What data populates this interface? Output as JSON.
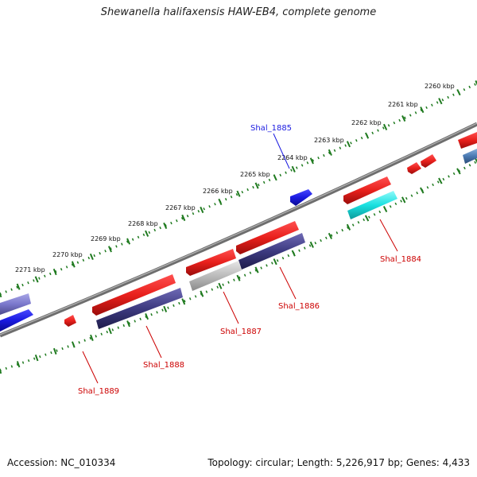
{
  "title": "Shewanella halifaxensis HAW-EB4, complete genome",
  "footer": {
    "accession": "Accession: NC_010334",
    "summary": "Topology: circular; Length: 5,226,917 bp; Genes: 4,433"
  },
  "colors": {
    "forward_cds": "#e8201c",
    "reverse_cds": "#3d3a80",
    "highlight_blue": "#1a1ae0",
    "cyan": "#19e0e0",
    "gray": "#bbbbbb",
    "tick_green": "#1f7a1f",
    "backbone": "#777777"
  },
  "kbp_labels": [
    "2260 kbp",
    "2261 kbp",
    "2262 kbp",
    "2263 kbp",
    "2264 kbp",
    "2265 kbp",
    "2266 kbp",
    "2267 kbp",
    "2268 kbp",
    "2269 kbp",
    "2270 kbp",
    "2271 kbp"
  ],
  "genes": [
    {
      "name": "Shal_1885",
      "color": "#1a1ae0"
    },
    {
      "name": "Shal_1884",
      "color": "#cc0000"
    },
    {
      "name": "Shal_1886",
      "color": "#cc0000"
    },
    {
      "name": "Shal_1887",
      "color": "#cc0000"
    },
    {
      "name": "Shal_1888",
      "color": "#cc0000"
    },
    {
      "name": "Shal_1889",
      "color": "#cc0000"
    }
  ]
}
